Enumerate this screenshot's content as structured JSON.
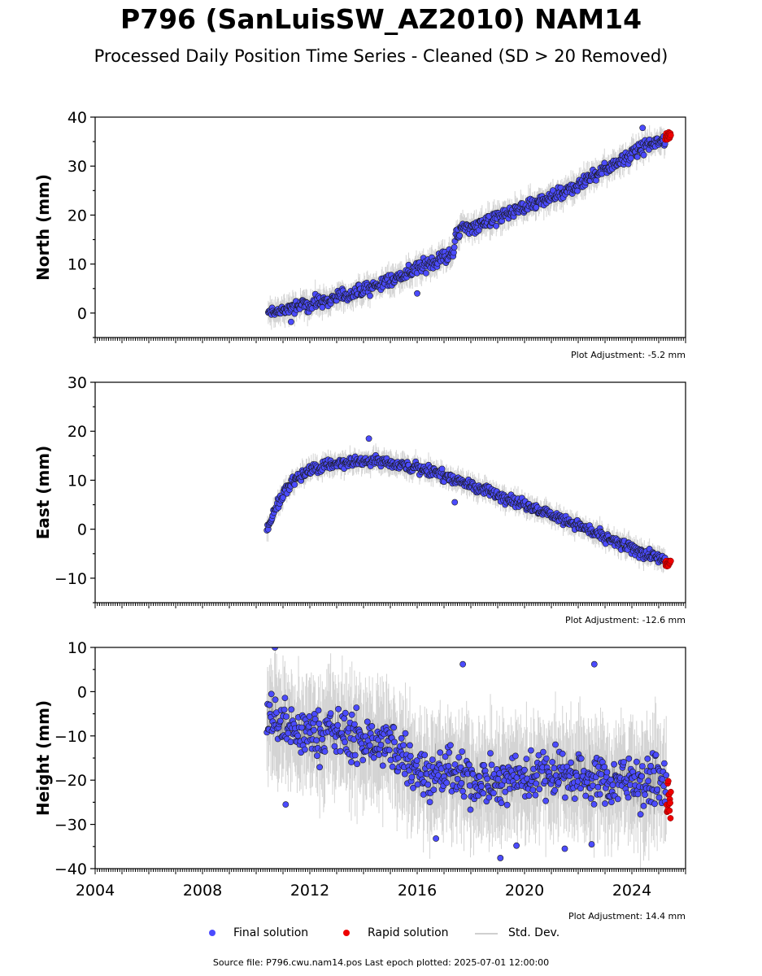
{
  "title": "P796 (SanLuisSW_AZ2010) NAM14",
  "subtitle": "Processed Daily Position Time Series - Cleaned (SD > 20 Removed)",
  "source_note": "Source file: P796.cwu.nam14.pos  Last epoch plotted: 2025-07-01 12:00:00",
  "legend": {
    "final": "Final solution",
    "rapid": "Rapid solution",
    "stddev": "Std. Dev."
  },
  "colors": {
    "final": "#4b4bff",
    "rapid": "#ee0000",
    "stddev": "#cfcfcf",
    "outline": "#1a1a1a"
  },
  "chart_data": [
    {
      "type": "scatter",
      "ylabel": "North (mm)",
      "xlim": [
        2004,
        2026
      ],
      "ylim": [
        -5,
        40
      ],
      "yticks": [
        0,
        10,
        20,
        30,
        40
      ],
      "xticks": [
        2004,
        2008,
        2012,
        2016,
        2020,
        2024
      ],
      "show_xtick_labels": false,
      "adjustment": "Plot Adjustment: -5.2 mm",
      "trend": [
        [
          2010.45,
          0.0
        ],
        [
          2012.0,
          1.8
        ],
        [
          2014.0,
          4.5
        ],
        [
          2015.5,
          7.8
        ],
        [
          2017.0,
          11.5
        ],
        [
          2017.35,
          12.0
        ],
        [
          2017.45,
          16.5
        ],
        [
          2018.5,
          18.5
        ],
        [
          2020.0,
          21.5
        ],
        [
          2021.5,
          24.5
        ],
        [
          2023.0,
          29.5
        ],
        [
          2024.5,
          34.0
        ],
        [
          2025.4,
          36.0
        ]
      ],
      "noise": 1.1,
      "outliers": [
        [
          2024.4,
          37.8
        ],
        [
          2016.0,
          4.0
        ],
        [
          2011.3,
          -1.8
        ]
      ],
      "rapid_range": [
        2025.25,
        2025.45
      ],
      "rapid_values": [
        35.3,
        37.0
      ]
    },
    {
      "type": "scatter",
      "ylabel": "East (mm)",
      "xlim": [
        2004,
        2026
      ],
      "ylim": [
        -15,
        30
      ],
      "yticks": [
        -10,
        0,
        10,
        20,
        30
      ],
      "xticks": [
        2004,
        2008,
        2012,
        2016,
        2020,
        2024
      ],
      "show_xtick_labels": false,
      "adjustment": "Plot Adjustment: -12.6 mm",
      "trend": [
        [
          2010.4,
          0.0
        ],
        [
          2010.7,
          4.0
        ],
        [
          2011.0,
          7.0
        ],
        [
          2011.5,
          10.5
        ],
        [
          2012.0,
          12.0
        ],
        [
          2013.0,
          13.5
        ],
        [
          2014.0,
          14.0
        ],
        [
          2014.5,
          14.2
        ],
        [
          2015.5,
          13.0
        ],
        [
          2016.5,
          11.8
        ],
        [
          2017.5,
          10.0
        ],
        [
          2018.5,
          8.0
        ],
        [
          2019.5,
          6.0
        ],
        [
          2020.5,
          4.0
        ],
        [
          2021.5,
          2.0
        ],
        [
          2022.5,
          -0.5
        ],
        [
          2023.5,
          -3.0
        ],
        [
          2024.5,
          -5.0
        ],
        [
          2025.4,
          -7.0
        ]
      ],
      "noise": 0.9,
      "outliers": [
        [
          2014.2,
          18.5
        ],
        [
          2017.4,
          5.5
        ]
      ],
      "rapid_range": [
        2025.25,
        2025.45
      ],
      "rapid_values": [
        -7.8,
        -6.3
      ]
    },
    {
      "type": "scatter",
      "ylabel": "Height (mm)",
      "xlim": [
        2004,
        2026
      ],
      "ylim": [
        -40,
        10
      ],
      "yticks": [
        -40,
        -30,
        -20,
        -10,
        0,
        10
      ],
      "xticks": [
        2004,
        2008,
        2012,
        2016,
        2020,
        2024
      ],
      "show_xtick_labels": true,
      "adjustment": "Plot Adjustment: 14.4 mm",
      "trend": [
        [
          2010.4,
          -5.0
        ],
        [
          2011.0,
          -8.0
        ],
        [
          2012.0,
          -10.0
        ],
        [
          2013.0,
          -9.0
        ],
        [
          2014.0,
          -11.0
        ],
        [
          2015.0,
          -12.0
        ],
        [
          2015.6,
          -14.0
        ],
        [
          2016.0,
          -18.0
        ],
        [
          2017.0,
          -19.0
        ],
        [
          2018.0,
          -20.0
        ],
        [
          2019.0,
          -21.0
        ],
        [
          2020.0,
          -19.0
        ],
        [
          2021.0,
          -18.0
        ],
        [
          2022.0,
          -19.0
        ],
        [
          2023.0,
          -20.0
        ],
        [
          2024.0,
          -20.0
        ],
        [
          2025.4,
          -21.0
        ]
      ],
      "noise": 4.8,
      "outliers": [
        [
          2010.7,
          10.0
        ],
        [
          2017.7,
          6.2
        ],
        [
          2022.6,
          6.2
        ],
        [
          2011.1,
          -25.5
        ],
        [
          2016.7,
          -33.2
        ],
        [
          2019.1,
          -37.6
        ],
        [
          2021.5,
          -35.5
        ],
        [
          2022.5,
          -34.5
        ],
        [
          2019.7,
          -34.8
        ]
      ],
      "rapid_range": [
        2025.3,
        2025.45
      ],
      "rapid_values": [
        -28.7,
        -18.2
      ]
    }
  ]
}
